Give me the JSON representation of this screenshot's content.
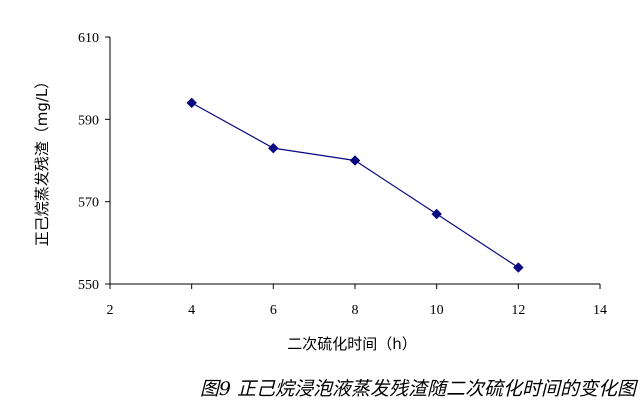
{
  "chart_data": {
    "type": "line",
    "x": [
      4,
      6,
      8,
      10,
      12
    ],
    "y": [
      594,
      583,
      580,
      567,
      554
    ],
    "xlim": [
      2,
      14
    ],
    "ylim": [
      550,
      610
    ],
    "xticks": [
      "2",
      "4",
      "6",
      "8",
      "10",
      "12",
      "14"
    ],
    "yticks": [
      "610",
      "590",
      "570",
      "550"
    ],
    "xlabel": "二次硫化时间（h）",
    "ylabel": "正己烷蒸发残渣（mg/L）",
    "title": "",
    "grid": false,
    "legend": "none",
    "color": "#0a0a80",
    "marker": "diamond"
  },
  "caption": "图9 正己烷浸泡液蒸发残渣随二次硫化时间的变化图"
}
